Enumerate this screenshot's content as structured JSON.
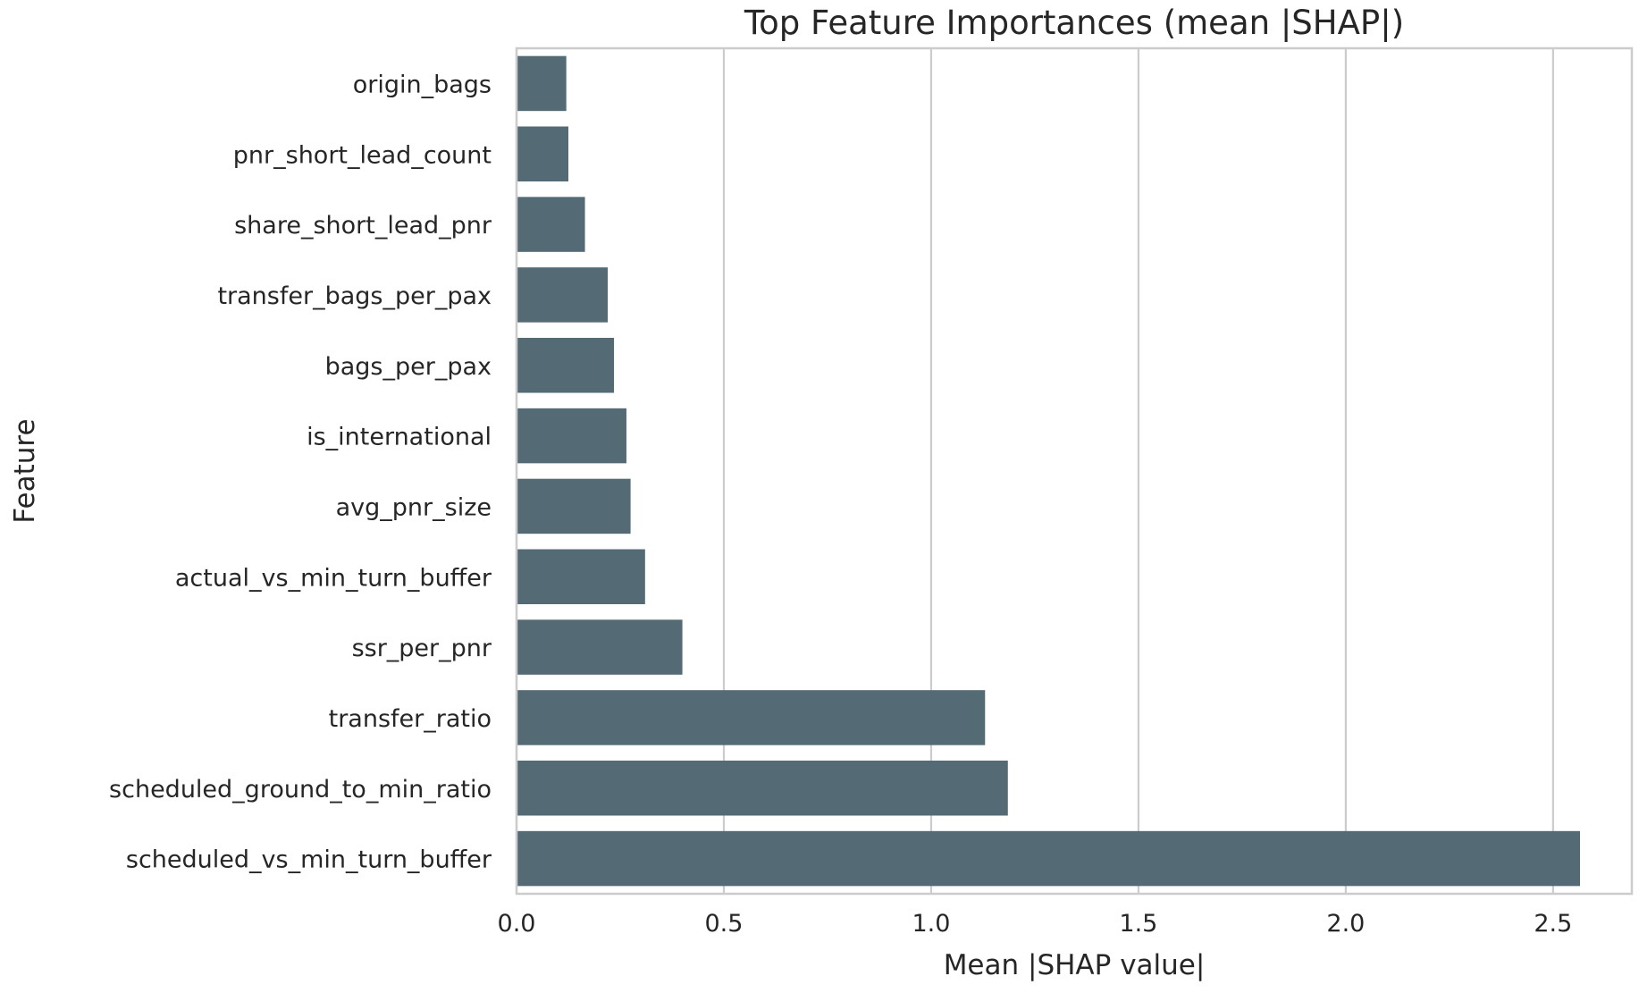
{
  "chart_data": {
    "type": "bar",
    "orientation": "horizontal",
    "title": "Top Feature Importances (mean |SHAP|)",
    "xlabel": "Mean |SHAP value|",
    "ylabel": "Feature",
    "categories": [
      "origin_bags",
      "pnr_short_lead_count",
      "share_short_lead_pnr",
      "transfer_bags_per_pax",
      "bags_per_pax",
      "is_international",
      "avg_pnr_size",
      "actual_vs_min_turn_buffer",
      "ssr_per_pnr",
      "transfer_ratio",
      "scheduled_ground_to_min_ratio",
      "scheduled_vs_min_turn_buffer"
    ],
    "values": [
      0.12,
      0.125,
      0.165,
      0.22,
      0.235,
      0.265,
      0.275,
      0.31,
      0.4,
      1.13,
      1.185,
      2.565
    ],
    "xlim": [
      0,
      2.69
    ],
    "xticks": [
      0.0,
      0.5,
      1.0,
      1.5,
      2.0,
      2.5
    ],
    "xtick_labels": [
      "0.0",
      "0.5",
      "1.0",
      "1.5",
      "2.0",
      "2.5"
    ],
    "grid": "x-only",
    "bar_color": "#546a74",
    "legend": "none"
  }
}
